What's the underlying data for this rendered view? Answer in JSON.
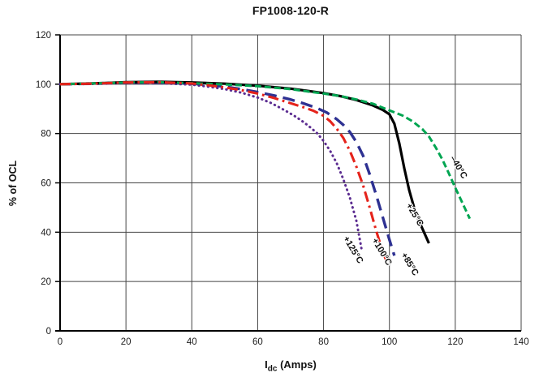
{
  "title": "FP1008-120-R",
  "axes": {
    "x": {
      "label_main": "I",
      "label_sub": "dc",
      "label_rest": " (Amps)",
      "min": 0,
      "max": 140
    },
    "y": {
      "label": "% of OCL",
      "min": 0,
      "max": 120
    }
  },
  "chart_data": {
    "type": "line",
    "title": "FP1008-120-R",
    "xlabel": "Idc (Amps)",
    "ylabel": "% of OCL",
    "xlim": [
      0,
      140
    ],
    "ylim": [
      0,
      120
    ],
    "grid": true,
    "grid_color": "#444444",
    "axis_color": "#000000",
    "legend_position": "inline-rotated-labels",
    "xticks": [
      0,
      20,
      40,
      60,
      80,
      100,
      120,
      140
    ],
    "yticks": [
      0,
      20,
      40,
      60,
      80,
      100,
      120
    ],
    "series": [
      {
        "id": "plus125C",
        "name": "+125°C",
        "color": "#5C2D91",
        "style": "dotted",
        "width": 3,
        "dash": "0.5 5.2",
        "linecap": "round",
        "points": [
          [
            0,
            100
          ],
          [
            10,
            100.1
          ],
          [
            20,
            100.4
          ],
          [
            30,
            100.4
          ],
          [
            40,
            99.8
          ],
          [
            45,
            99
          ],
          [
            50,
            98
          ],
          [
            55,
            96.6
          ],
          [
            60,
            94.6
          ],
          [
            64,
            92.4
          ],
          [
            68,
            89.6
          ],
          [
            71,
            87.3
          ],
          [
            74,
            84.6
          ],
          [
            76,
            82.5
          ],
          [
            78,
            80.2
          ],
          [
            80,
            77
          ],
          [
            82,
            73
          ],
          [
            84,
            68
          ],
          [
            86,
            61.5
          ],
          [
            88,
            54
          ],
          [
            90,
            44.5
          ],
          [
            91.5,
            33.5
          ]
        ]
      },
      {
        "id": "plus85C",
        "name": "+85°C",
        "color": "#2E3192",
        "style": "long-dash",
        "width": 3.4,
        "dash": "15 8",
        "linecap": "butt",
        "points": [
          [
            0,
            100
          ],
          [
            10,
            100.2
          ],
          [
            20,
            100.6
          ],
          [
            30,
            100.7
          ],
          [
            40,
            100.2
          ],
          [
            45,
            99.7
          ],
          [
            50,
            99
          ],
          [
            55,
            98
          ],
          [
            60,
            96.8
          ],
          [
            65,
            95.4
          ],
          [
            70,
            93.8
          ],
          [
            74,
            92.2
          ],
          [
            78,
            90.3
          ],
          [
            81,
            88.5
          ],
          [
            84,
            85.8
          ],
          [
            86,
            83.5
          ],
          [
            88,
            80.6
          ],
          [
            90,
            76.5
          ],
          [
            92,
            71
          ],
          [
            94,
            63.5
          ],
          [
            96,
            55
          ],
          [
            98,
            46
          ],
          [
            100,
            37
          ],
          [
            101.5,
            30.5
          ]
        ]
      },
      {
        "id": "plus25C",
        "name": "+25°C",
        "color": "#000000",
        "style": "solid",
        "width": 3.2,
        "dash": "",
        "linecap": "butt",
        "points": [
          [
            0,
            100
          ],
          [
            10,
            100.3
          ],
          [
            20,
            100.8
          ],
          [
            30,
            101
          ],
          [
            40,
            100.7
          ],
          [
            50,
            100.2
          ],
          [
            60,
            99.4
          ],
          [
            70,
            98.2
          ],
          [
            80,
            96.4
          ],
          [
            85,
            95.2
          ],
          [
            90,
            93.6
          ],
          [
            95,
            91.4
          ],
          [
            98,
            89.6
          ],
          [
            100,
            87.8
          ],
          [
            101.5,
            84
          ],
          [
            103,
            76
          ],
          [
            104.5,
            66
          ],
          [
            106,
            57
          ],
          [
            107.5,
            50
          ],
          [
            109,
            44.5
          ],
          [
            110.5,
            40
          ],
          [
            112,
            35.5
          ]
        ]
      },
      {
        "id": "minus40C",
        "name": "-40°C",
        "color": "#00A551",
        "style": "dashed",
        "width": 3,
        "dash": "8 4",
        "linecap": "butt",
        "points": [
          [
            0,
            100
          ],
          [
            10,
            100.3
          ],
          [
            20,
            100.7
          ],
          [
            30,
            100.8
          ],
          [
            40,
            100.4
          ],
          [
            50,
            99.9
          ],
          [
            60,
            99.2
          ],
          [
            70,
            98
          ],
          [
            80,
            96.2
          ],
          [
            85,
            95.2
          ],
          [
            90,
            93.8
          ],
          [
            95,
            92.1
          ],
          [
            100,
            89.4
          ],
          [
            104,
            87.3
          ],
          [
            107,
            85
          ],
          [
            110,
            81.8
          ],
          [
            112,
            78.8
          ],
          [
            114,
            74.5
          ],
          [
            116,
            69.7
          ],
          [
            118,
            64
          ],
          [
            120,
            58
          ],
          [
            122,
            52.3
          ],
          [
            124.4,
            45.5
          ]
        ]
      },
      {
        "id": "plus100C",
        "name": "+100°C",
        "color": "#E5231B",
        "style": "dash-dot",
        "width": 3.1,
        "dash": "13 5 2.8 5",
        "linecap": "butt",
        "points": [
          [
            0,
            100
          ],
          [
            10,
            100.2
          ],
          [
            20,
            100.7
          ],
          [
            30,
            100.8
          ],
          [
            40,
            100.3
          ],
          [
            45,
            99.6
          ],
          [
            50,
            98.7
          ],
          [
            55,
            97.6
          ],
          [
            60,
            96.2
          ],
          [
            65,
            94.4
          ],
          [
            70,
            92.3
          ],
          [
            74,
            90.6
          ],
          [
            77,
            89.2
          ],
          [
            80,
            87.2
          ],
          [
            82,
            85
          ],
          [
            84,
            82
          ],
          [
            86,
            78.2
          ],
          [
            88,
            73
          ],
          [
            90,
            66.5
          ],
          [
            92,
            59
          ],
          [
            94,
            50
          ],
          [
            96,
            40.5
          ],
          [
            98,
            32
          ],
          [
            99.2,
            28
          ]
        ]
      }
    ],
    "labels": [
      {
        "id": "minus40C",
        "text": "–40°C",
        "x": 120.3,
        "y": 65.8,
        "angle": 59
      },
      {
        "id": "plus25C",
        "text": "+25°C",
        "x": 107.0,
        "y": 46.5,
        "angle": 59
      },
      {
        "id": "plus85C",
        "text": "+85°C",
        "x": 105.5,
        "y": 26.5,
        "angle": 59
      },
      {
        "id": "plus100C",
        "text": "+100°C",
        "x": 97.0,
        "y": 31.5,
        "angle": 59
      },
      {
        "id": "plus125C",
        "text": "+125°C",
        "x": 88.3,
        "y": 32.3,
        "angle": 59
      }
    ]
  }
}
